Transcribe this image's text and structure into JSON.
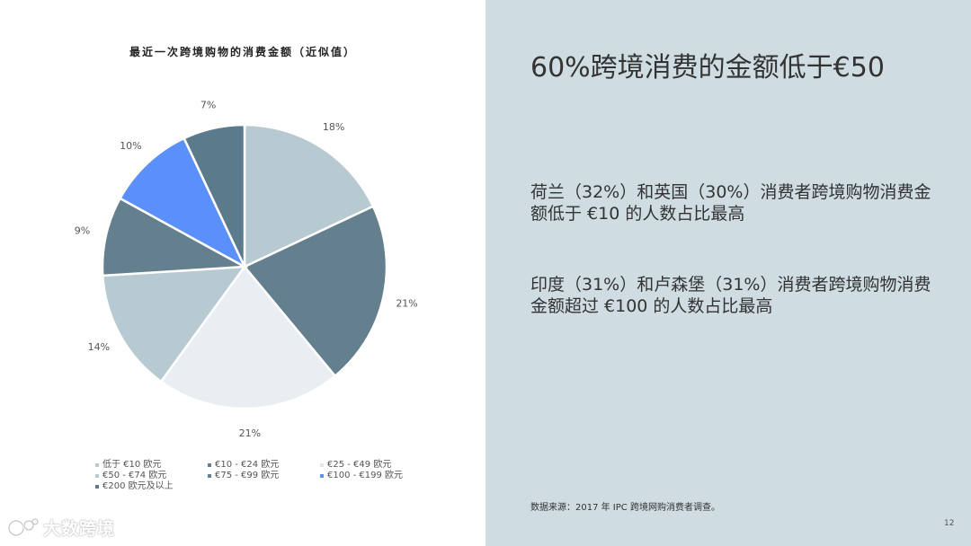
{
  "chart_data": {
    "type": "pie",
    "title": "最近一次跨境购物的消费金额（近似值）",
    "slices": [
      {
        "label": "低于 €10 欧元",
        "value": 18,
        "display": "18%",
        "color": "#b7c9d1"
      },
      {
        "label": "€10 - €24 欧元",
        "value": 21,
        "display": "21%",
        "color": "#647f8d"
      },
      {
        "label": "€25 - €49 欧元",
        "value": 21,
        "display": "21%",
        "color": "#e8eef1"
      },
      {
        "label": "€50 - €74 欧元",
        "value": 14,
        "display": "14%",
        "color": "#b7c9d1"
      },
      {
        "label": "€75 - €99 欧元",
        "value": 9,
        "display": "9%",
        "color": "#647f8d"
      },
      {
        "label": "€100 - €199 欧元",
        "value": 10,
        "display": "10%",
        "color": "#5b8ff9"
      },
      {
        "label": "€200 欧元及以上",
        "value": 7,
        "display": "7%",
        "color": "#5b7b8c"
      }
    ],
    "legend_position": "bottom"
  },
  "headline": "60%跨境消费的金额低于€50",
  "paragraphs": [
    "荷兰（32%）和英国（30%）消费者跨境购物消费金额低于 €10 的人数占比最高",
    "印度（31%）和卢森堡（31%）消费者跨境购物消费金额超过 €100 的人数占比最高"
  ],
  "source": "数据来源：2017 年 IPC 跨境网购消费者调查。",
  "page_number": "12",
  "logo_text": "大数跨境",
  "colors": {
    "right_panel_bg": "#cfdce2",
    "accent_blue": "#5b8ff9"
  }
}
